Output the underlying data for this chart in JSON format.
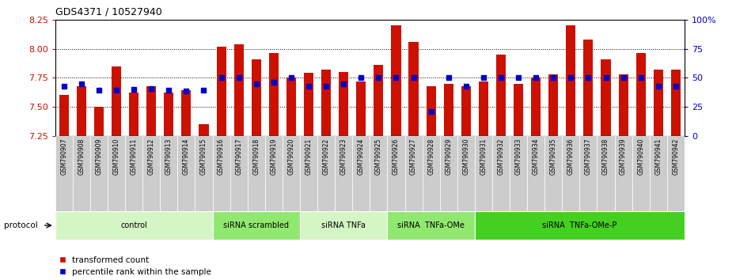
{
  "title": "GDS4371 / 10527940",
  "samples": [
    "GSM790907",
    "GSM790908",
    "GSM790909",
    "GSM790910",
    "GSM790911",
    "GSM790912",
    "GSM790913",
    "GSM790914",
    "GSM790915",
    "GSM790916",
    "GSM790917",
    "GSM790918",
    "GSM790919",
    "GSM790920",
    "GSM790921",
    "GSM790922",
    "GSM790923",
    "GSM790924",
    "GSM790925",
    "GSM790926",
    "GSM790927",
    "GSM790928",
    "GSM790929",
    "GSM790930",
    "GSM790931",
    "GSM790932",
    "GSM790933",
    "GSM790934",
    "GSM790935",
    "GSM790936",
    "GSM790937",
    "GSM790938",
    "GSM790939",
    "GSM790940",
    "GSM790941",
    "GSM790942"
  ],
  "bar_values": [
    7.6,
    7.68,
    7.5,
    7.85,
    7.62,
    7.68,
    7.62,
    7.64,
    7.35,
    8.02,
    8.04,
    7.91,
    7.96,
    7.75,
    7.79,
    7.82,
    7.8,
    7.72,
    7.86,
    8.2,
    8.06,
    7.68,
    7.7,
    7.68,
    7.72,
    7.95,
    7.7,
    7.75,
    7.78,
    8.2,
    8.08,
    7.91,
    7.78,
    7.96,
    7.82,
    7.82
  ],
  "percentile_values": [
    7.68,
    7.695,
    7.645,
    7.645,
    7.65,
    7.655,
    7.645,
    7.635,
    7.645,
    7.75,
    7.75,
    7.7,
    7.71,
    7.755,
    7.68,
    7.68,
    7.7,
    7.755,
    7.755,
    7.755,
    7.755,
    7.46,
    7.755,
    7.68,
    7.755,
    7.755,
    7.755,
    7.755,
    7.755,
    7.755,
    7.755,
    7.755,
    7.755,
    7.755,
    7.68,
    7.68
  ],
  "groups": [
    {
      "label": "control",
      "start": 0,
      "end": 8,
      "color": "#d4f5c4"
    },
    {
      "label": "siRNA scrambled",
      "start": 9,
      "end": 13,
      "color": "#90e870"
    },
    {
      "label": "siRNA TNFa",
      "start": 14,
      "end": 18,
      "color": "#d4f5c4"
    },
    {
      "label": "siRNA  TNFa-OMe",
      "start": 19,
      "end": 23,
      "color": "#90e870"
    },
    {
      "label": "siRNA  TNFa-OMe-P",
      "start": 24,
      "end": 35,
      "color": "#44d020"
    }
  ],
  "ylim_left": [
    7.25,
    8.25
  ],
  "ylim_right": [
    0,
    100
  ],
  "yticks_left": [
    7.25,
    7.5,
    7.75,
    8.0,
    8.25
  ],
  "ytick_labels_right": [
    "0",
    "25",
    "50",
    "75",
    "100%"
  ],
  "yticks_right": [
    0,
    25,
    50,
    75,
    100
  ],
  "bar_color": "#cc1100",
  "marker_color": "#0000cc",
  "bg_color": "#ffffff",
  "tick_color_left": "#cc1100",
  "tick_color_right": "#0000cc",
  "bar_width": 0.55,
  "marker_size": 4,
  "xtick_bg": "#cccccc",
  "group_border": "#ffffff"
}
